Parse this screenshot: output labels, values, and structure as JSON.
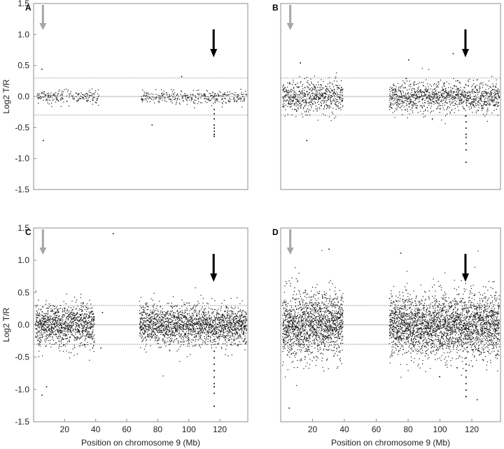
{
  "figure": {
    "y_axis_label": "Log2 T/R",
    "x_axis_label": "Position on chromosome 9 (Mb)"
  },
  "chart_data": [
    {
      "panel": "A",
      "type": "scatter",
      "ylabel": "Log2 T/R",
      "xlabel": "",
      "xlim": [
        0,
        138
      ],
      "ylim": [
        -1.5,
        1.5
      ],
      "yticks": [
        "1.5",
        "1.0",
        "0.5",
        "0.0",
        "-0.5",
        "-1.0",
        "-1.5"
      ],
      "ytick_values": [
        1.5,
        1.0,
        0.5,
        0.0,
        -0.5,
        -1.0,
        -1.5
      ],
      "xticks": [],
      "xtick_values": [],
      "threshold_lines": [
        0.3,
        0.0,
        -0.3
      ],
      "data_segments": [
        {
          "x_start": 2,
          "x_end": 42,
          "sd": 0.06,
          "density": 0.5
        },
        {
          "x_start": 69,
          "x_end": 137,
          "sd": 0.055,
          "density": 0.5
        }
      ],
      "outliers": [
        {
          "x": 5,
          "y": 0.45
        },
        {
          "x": 6,
          "y": -0.7
        },
        {
          "x": 76,
          "y": -0.45
        },
        {
          "x": 95,
          "y": 0.33
        }
      ],
      "dip": {
        "x": 116,
        "values": [
          -0.35,
          -0.45,
          -0.5,
          -0.55,
          -0.6,
          -0.63,
          -0.27,
          -0.2
        ]
      },
      "gray_arrow": {
        "x": 6
      },
      "black_arrow": {
        "x": 116
      }
    },
    {
      "panel": "B",
      "type": "scatter",
      "ylabel": "",
      "xlabel": "",
      "xlim": [
        0,
        138
      ],
      "ylim": [
        -1.5,
        1.5
      ],
      "yticks": [],
      "ytick_values": [],
      "xticks": [],
      "xtick_values": [],
      "threshold_lines": [
        0.3,
        0.0,
        -0.3
      ],
      "data_segments": [
        {
          "x_start": 1,
          "x_end": 39,
          "sd": 0.13,
          "density": 1.6
        },
        {
          "x_start": 68,
          "x_end": 137,
          "sd": 0.12,
          "density": 1.6
        }
      ],
      "outliers": [
        {
          "x": 12,
          "y": 0.55
        },
        {
          "x": 16,
          "y": -0.7
        },
        {
          "x": 80,
          "y": 0.6
        },
        {
          "x": 108,
          "y": 0.7
        }
      ],
      "dip": {
        "x": 116,
        "values": [
          -0.4,
          -0.5,
          -0.6,
          -0.65,
          -0.75,
          -0.85,
          -1.05,
          -0.3
        ]
      },
      "gray_arrow": {
        "x": 6
      },
      "black_arrow": {
        "x": 116
      }
    },
    {
      "panel": "C",
      "type": "scatter",
      "ylabel": "Log2 T/R",
      "xlabel": "Position on chromosome 9 (Mb)",
      "xlim": [
        0,
        138
      ],
      "ylim": [
        -1.5,
        1.5
      ],
      "yticks": [
        "1.5",
        "1.0",
        "0.5",
        "0.0",
        "-0.5",
        "-1.0",
        "-1.5"
      ],
      "ytick_values": [
        1.5,
        1.0,
        0.5,
        0.0,
        -0.5,
        -1.0,
        -1.5
      ],
      "xticks": [
        "20",
        "40",
        "60",
        "80",
        "100",
        "120"
      ],
      "xtick_values": [
        20,
        40,
        60,
        80,
        100,
        120
      ],
      "threshold_lines": [
        0.3,
        0.0,
        -0.3
      ],
      "data_segments": [
        {
          "x_start": 1,
          "x_end": 39,
          "sd": 0.16,
          "density": 2.8
        },
        {
          "x_start": 68,
          "x_end": 137,
          "sd": 0.15,
          "density": 2.8
        }
      ],
      "outliers": [
        {
          "x": 5,
          "y": -1.08
        },
        {
          "x": 8,
          "y": -0.95
        },
        {
          "x": 51,
          "y": 1.42
        },
        {
          "x": 43,
          "y": -0.35
        },
        {
          "x": 44,
          "y": 0.2
        }
      ],
      "dip": {
        "x": 116,
        "values": [
          -0.5,
          -0.6,
          -0.7,
          -0.8,
          -0.9,
          -0.95,
          -1.05,
          -1.25,
          -0.4
        ]
      },
      "gray_arrow": {
        "x": 6
      },
      "black_arrow": {
        "x": 116
      }
    },
    {
      "panel": "D",
      "type": "scatter",
      "ylabel": "",
      "xlabel": "Position on chromosome 9 (Mb)",
      "xlim": [
        0,
        138
      ],
      "ylim": [
        -1.5,
        1.5
      ],
      "yticks": [],
      "ytick_values": [],
      "xticks": [
        "20",
        "40",
        "60",
        "80",
        "100",
        "120"
      ],
      "xtick_values": [
        20,
        40,
        60,
        80,
        100,
        120
      ],
      "threshold_lines": [
        0.3,
        0.0,
        -0.3
      ],
      "data_segments": [
        {
          "x_start": 1,
          "x_end": 39,
          "sd": 0.25,
          "density": 4.0
        },
        {
          "x_start": 68,
          "x_end": 137,
          "sd": 0.24,
          "density": 4.0
        }
      ],
      "outliers": [
        {
          "x": 5,
          "y": -1.28
        },
        {
          "x": 30,
          "y": 1.18
        },
        {
          "x": 75,
          "y": 1.12
        },
        {
          "x": 123,
          "y": -1.15
        }
      ],
      "dip": {
        "x": 116,
        "values": [
          -0.6,
          -0.7,
          -0.8,
          -0.9,
          -1.0,
          -1.1,
          -0.5
        ]
      },
      "gray_arrow": {
        "x": 6
      },
      "black_arrow": {
        "x": 116
      }
    }
  ]
}
